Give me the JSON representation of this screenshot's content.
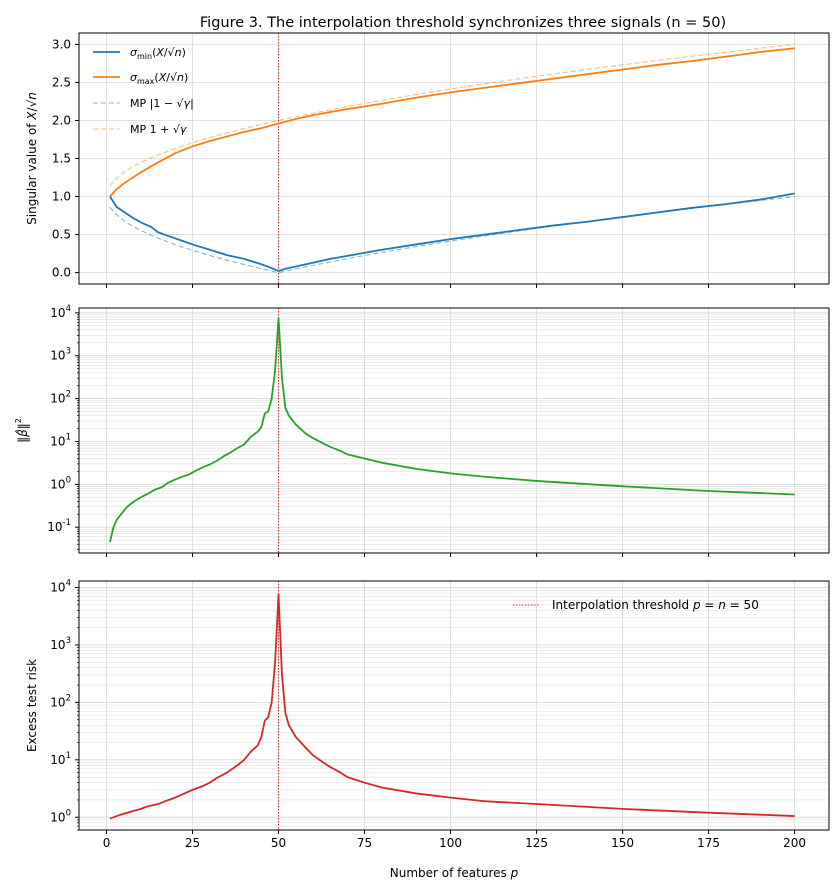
{
  "figure_title": "Figure 3.  The interpolation threshold synchronizes three signals  (n = 50)",
  "colors": {
    "sigma_min": "#1f77b4",
    "sigma_max": "#ff7f0e",
    "beta_norm": "#2ca02c",
    "risk": "#d62728",
    "threshold": "#d62728",
    "grid": "#d9d9d9"
  },
  "chart_data": [
    {
      "type": "line",
      "panel": "top",
      "title": "Figure 3.  The interpolation threshold synchronizes three signals  (n = 50)",
      "xlabel": "",
      "ylabel": "Singular value of  X/√n",
      "xlim": [
        -8,
        210
      ],
      "ylim": [
        -0.15,
        3.15
      ],
      "yscale": "linear",
      "x_ticks": [
        0,
        25,
        50,
        75,
        100,
        125,
        150,
        175,
        200
      ],
      "y_ticks": [
        0.0,
        0.5,
        1.0,
        1.5,
        2.0,
        2.5,
        3.0
      ],
      "y_tick_labels": [
        "0.0",
        "0.5",
        "1.0",
        "1.5",
        "2.0",
        "2.5",
        "3.0"
      ],
      "grid": true,
      "legend_position": "top-left",
      "vline_x": 50,
      "series": [
        {
          "name": "σmin(X/√n)",
          "style": "solid",
          "x": [
            1,
            3,
            5,
            8,
            10,
            13,
            15,
            18,
            20,
            25,
            30,
            35,
            40,
            45,
            48,
            50,
            52,
            55,
            60,
            65,
            70,
            80,
            90,
            100,
            110,
            120,
            130,
            140,
            150,
            160,
            170,
            180,
            190,
            200
          ],
          "y": [
            1.0,
            0.86,
            0.8,
            0.71,
            0.66,
            0.6,
            0.53,
            0.48,
            0.45,
            0.37,
            0.3,
            0.23,
            0.18,
            0.11,
            0.06,
            0.02,
            0.05,
            0.08,
            0.13,
            0.18,
            0.22,
            0.3,
            0.37,
            0.44,
            0.5,
            0.56,
            0.62,
            0.67,
            0.73,
            0.79,
            0.85,
            0.9,
            0.96,
            1.04
          ]
        },
        {
          "name": "σmax(X/√n)",
          "style": "solid",
          "x": [
            1,
            3,
            5,
            8,
            10,
            15,
            20,
            25,
            30,
            35,
            40,
            45,
            50,
            55,
            60,
            70,
            80,
            90,
            100,
            110,
            120,
            130,
            140,
            150,
            160,
            170,
            180,
            190,
            200
          ],
          "y": [
            1.0,
            1.1,
            1.17,
            1.26,
            1.32,
            1.45,
            1.57,
            1.66,
            1.73,
            1.79,
            1.85,
            1.9,
            1.96,
            2.02,
            2.07,
            2.15,
            2.22,
            2.3,
            2.37,
            2.43,
            2.49,
            2.55,
            2.61,
            2.67,
            2.73,
            2.78,
            2.84,
            2.9,
            2.95
          ]
        },
        {
          "name": "MP |1 − √γ|",
          "style": "dashed",
          "x": [
            1,
            2,
            4,
            6,
            8,
            10,
            12,
            15,
            20,
            25,
            30,
            35,
            40,
            45,
            50,
            55,
            60,
            70,
            80,
            90,
            100,
            110,
            120,
            130,
            140,
            150,
            160,
            170,
            180,
            190,
            200
          ],
          "y": [
            0.859,
            0.8,
            0.717,
            0.654,
            0.6,
            0.553,
            0.51,
            0.452,
            0.368,
            0.293,
            0.225,
            0.163,
            0.106,
            0.051,
            0.0,
            0.049,
            0.095,
            0.183,
            0.265,
            0.342,
            0.414,
            0.483,
            0.549,
            0.612,
            0.673,
            0.732,
            0.789,
            0.844,
            0.897,
            0.949,
            1.0
          ]
        },
        {
          "name": "MP 1 + √γ",
          "style": "dashed",
          "x": [
            1,
            2,
            4,
            6,
            8,
            10,
            12,
            15,
            20,
            25,
            30,
            35,
            40,
            45,
            50,
            55,
            60,
            70,
            80,
            90,
            100,
            110,
            120,
            130,
            140,
            150,
            160,
            170,
            180,
            190,
            200
          ],
          "y": [
            1.141,
            1.2,
            1.283,
            1.346,
            1.4,
            1.447,
            1.49,
            1.548,
            1.632,
            1.707,
            1.775,
            1.837,
            1.894,
            1.949,
            2.0,
            2.049,
            2.095,
            2.183,
            2.265,
            2.342,
            2.414,
            2.483,
            2.549,
            2.612,
            2.673,
            2.732,
            2.789,
            2.844,
            2.897,
            2.949,
            3.0
          ]
        }
      ]
    },
    {
      "type": "line",
      "panel": "middle",
      "title": "",
      "xlabel": "",
      "ylabel": "‖β̂‖²",
      "xlim": [
        -8,
        210
      ],
      "ylim": [
        0.025,
        13000
      ],
      "yscale": "log",
      "x_ticks": [
        0,
        25,
        50,
        75,
        100,
        125,
        150,
        175,
        200
      ],
      "y_ticks": [
        0.1,
        1,
        10,
        100,
        1000,
        10000
      ],
      "y_tick_exponents": [
        "-1",
        "0",
        "1",
        "2",
        "3",
        "4"
      ],
      "grid": true,
      "vline_x": 50,
      "series": [
        {
          "name": "",
          "style": "solid",
          "x": [
            1,
            2,
            3,
            4,
            6,
            8,
            10,
            12,
            14,
            16,
            18,
            20,
            22,
            24,
            26,
            28,
            30,
            32,
            34,
            36,
            38,
            40,
            42,
            44,
            45,
            46,
            47,
            48,
            49,
            50,
            51,
            52,
            53,
            55,
            58,
            60,
            63,
            65,
            68,
            70,
            75,
            80,
            90,
            100,
            110,
            125,
            150,
            175,
            200
          ],
          "y": [
            0.045,
            0.1,
            0.15,
            0.19,
            0.3,
            0.4,
            0.5,
            0.6,
            0.75,
            0.85,
            1.1,
            1.3,
            1.5,
            1.7,
            2.1,
            2.5,
            2.9,
            3.5,
            4.5,
            5.5,
            7.0,
            8.5,
            13,
            17,
            22,
            45,
            50,
            100,
            450,
            7500,
            300,
            60,
            40,
            25,
            15,
            12,
            9,
            7.5,
            6,
            5,
            4,
            3.2,
            2.3,
            1.8,
            1.5,
            1.2,
            0.9,
            0.7,
            0.58
          ]
        }
      ]
    },
    {
      "type": "line",
      "panel": "bottom",
      "title": "",
      "xlabel": "Number of features  p",
      "ylabel": "Excess test risk",
      "xlim": [
        -8,
        210
      ],
      "ylim": [
        0.6,
        13000
      ],
      "yscale": "log",
      "x_ticks": [
        0,
        25,
        50,
        75,
        100,
        125,
        150,
        175,
        200
      ],
      "x_tick_labels": [
        "0",
        "25",
        "50",
        "75",
        "100",
        "125",
        "150",
        "175",
        "200"
      ],
      "y_ticks": [
        1,
        10,
        100,
        1000,
        10000
      ],
      "y_tick_exponents": [
        "0",
        "1",
        "2",
        "3",
        "4"
      ],
      "grid": true,
      "legend_position": "top-right",
      "vline_x": 50,
      "vline_label": "Interpolation threshold  p = n = 50",
      "series": [
        {
          "name": "",
          "style": "solid",
          "x": [
            1,
            3,
            5,
            8,
            10,
            12,
            15,
            18,
            20,
            22,
            25,
            28,
            30,
            32,
            35,
            38,
            40,
            42,
            44,
            45,
            46,
            47,
            48,
            49,
            50,
            51,
            52,
            53,
            55,
            58,
            60,
            63,
            65,
            68,
            70,
            75,
            80,
            90,
            100,
            110,
            125,
            150,
            175,
            200
          ],
          "y": [
            0.95,
            1.05,
            1.15,
            1.3,
            1.4,
            1.55,
            1.7,
            2.0,
            2.2,
            2.5,
            3.0,
            3.5,
            4.0,
            4.8,
            6.0,
            8.0,
            10,
            14,
            18,
            25,
            48,
            55,
            100,
            500,
            7500,
            300,
            65,
            40,
            25,
            16,
            12,
            9,
            7.5,
            6,
            5,
            4,
            3.3,
            2.6,
            2.2,
            1.9,
            1.7,
            1.4,
            1.2,
            1.05
          ]
        }
      ]
    }
  ]
}
